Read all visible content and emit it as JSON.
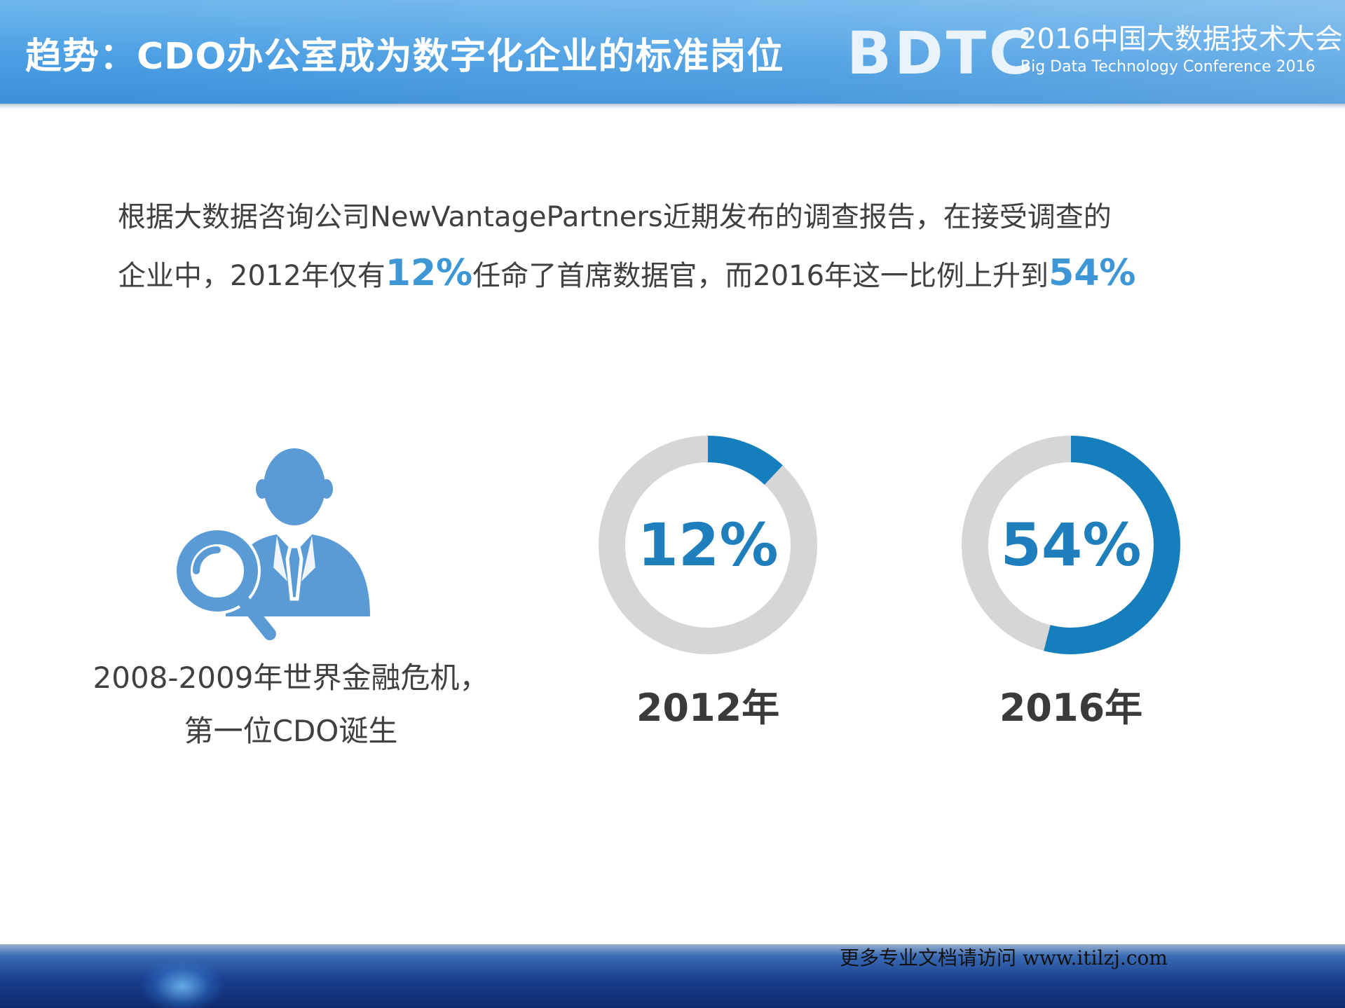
{
  "header": {
    "title": "趋势：CDO办公室成为数字化企业的标准岗位",
    "logo": {
      "mark": "BDTC",
      "cn": "2016中国大数据技术大会",
      "en": "Big Data Technology Conference 2016"
    }
  },
  "intro": {
    "part1": "根据大数据咨询公司NewVantagePartners近期发布的调查报告，在接受调查的",
    "part2": "企业中，2012年仅有",
    "highlight1": "12%",
    "part3": "任命了首席数据官，而2016年这一比例上升到",
    "highlight2": "54%"
  },
  "left_block": {
    "icon": "person-search-icon",
    "caption_line1": "2008-2009年世界金融危机，",
    "caption_line2": "第一位CDO诞生"
  },
  "stats": [
    {
      "value": "12%",
      "year": "2012年",
      "fraction": 0.12
    },
    {
      "value": "54%",
      "year": "2016年",
      "fraction": 0.54
    }
  ],
  "footer": {
    "note": "更多专业文档请访问 www.itilzj.com"
  },
  "colors": {
    "accent": "#1f7fbd",
    "arc": "#147fbc",
    "track": "#d6d6d6",
    "icon": "#5b9bd5",
    "highlight": "#3d97d6"
  }
}
